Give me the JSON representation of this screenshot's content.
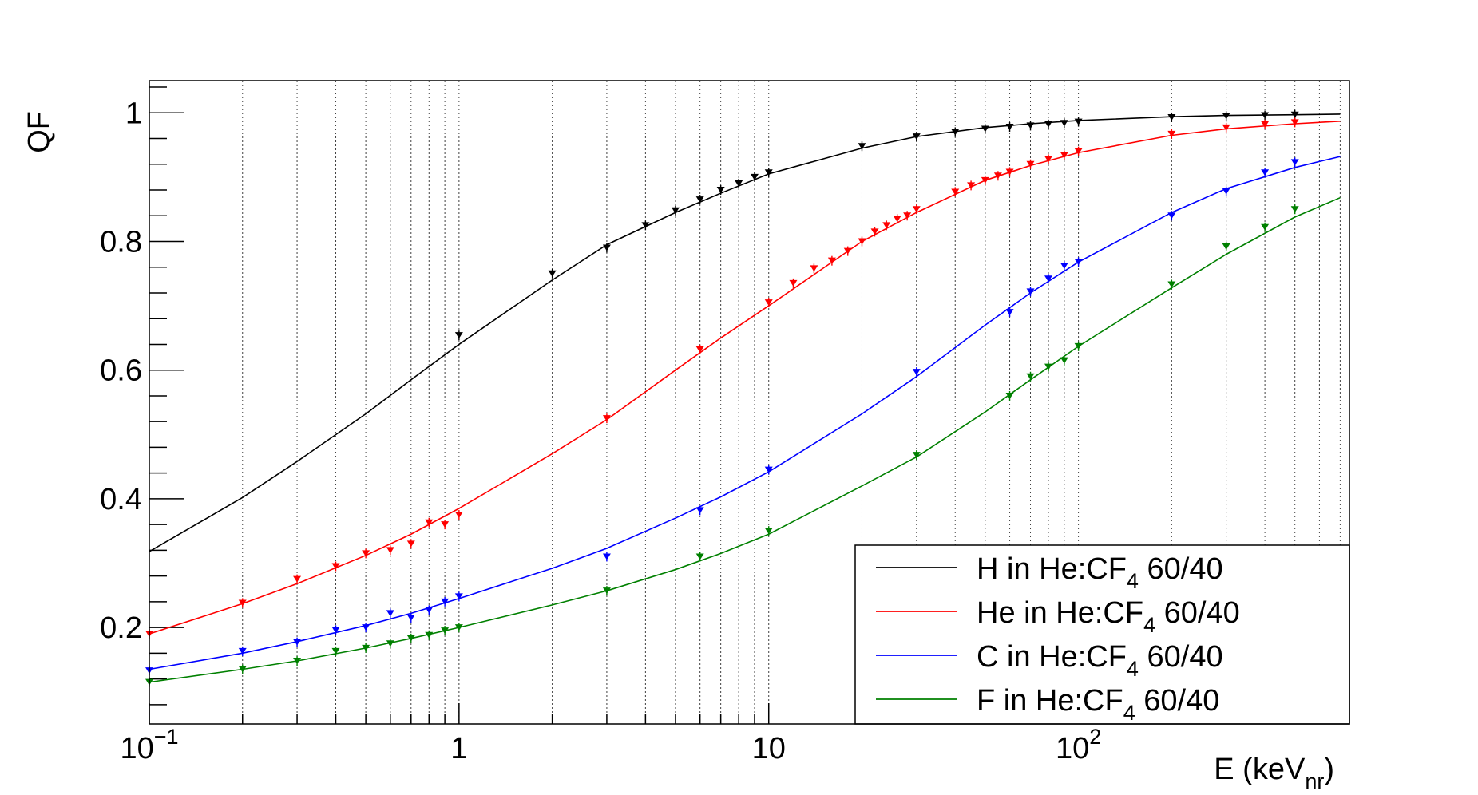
{
  "chart_data": {
    "type": "line",
    "xlabel": "E (keV",
    "xlabel_sub": "nr",
    "xlabel_end": ")",
    "ylabel": "QF",
    "xscale": "log",
    "xlim": [
      0.1,
      750
    ],
    "ylim": [
      0.05,
      1.05
    ],
    "grid": "vertical",
    "legend_position": "bottom-right",
    "x_tick_labels": [
      {
        "value": 0.1,
        "base": "10",
        "exp": "−1"
      },
      {
        "value": 1,
        "base": "1",
        "exp": ""
      },
      {
        "value": 10,
        "base": "10",
        "exp": ""
      },
      {
        "value": 100,
        "base": "10",
        "exp": "2"
      }
    ],
    "y_ticks": [
      0.2,
      0.4,
      0.6,
      0.8,
      1
    ],
    "y_tick_labels": [
      "0.2",
      "0.4",
      "0.6",
      "0.8",
      "1"
    ],
    "series": [
      {
        "name": "H in He:CF",
        "name_sub": "4",
        "name_end": " 60/40",
        "color": "#000000",
        "curve_x": [
          0.1,
          0.2,
          0.3,
          0.5,
          0.7,
          1,
          2,
          3,
          5,
          7,
          10,
          20,
          30,
          50,
          70,
          100,
          200,
          300,
          500,
          700
        ],
        "curve_y": [
          0.318,
          0.402,
          0.458,
          0.532,
          0.585,
          0.64,
          0.74,
          0.795,
          0.845,
          0.875,
          0.905,
          0.945,
          0.963,
          0.977,
          0.983,
          0.988,
          0.994,
          0.996,
          0.997,
          0.998
        ],
        "points": [
          [
            1,
            0.654
          ],
          [
            2,
            0.75
          ],
          [
            3,
            0.79
          ],
          [
            4,
            0.825
          ],
          [
            5,
            0.848
          ],
          [
            6,
            0.865
          ],
          [
            7,
            0.88
          ],
          [
            8,
            0.89
          ],
          [
            9,
            0.9
          ],
          [
            10,
            0.907
          ],
          [
            20,
            0.948
          ],
          [
            30,
            0.963
          ],
          [
            40,
            0.97
          ],
          [
            50,
            0.975
          ],
          [
            60,
            0.978
          ],
          [
            70,
            0.98
          ],
          [
            80,
            0.982
          ],
          [
            90,
            0.984
          ],
          [
            100,
            0.986
          ],
          [
            200,
            0.993
          ],
          [
            300,
            0.995
          ],
          [
            400,
            0.996
          ],
          [
            500,
            0.997
          ]
        ]
      },
      {
        "name": "He in He:CF",
        "name_sub": "4",
        "name_end": " 60/40",
        "color": "#ff0000",
        "curve_x": [
          0.1,
          0.2,
          0.3,
          0.5,
          0.7,
          1,
          2,
          3,
          5,
          7,
          10,
          20,
          30,
          50,
          70,
          100,
          200,
          300,
          500,
          700
        ],
        "curve_y": [
          0.19,
          0.237,
          0.268,
          0.312,
          0.345,
          0.385,
          0.47,
          0.523,
          0.6,
          0.65,
          0.7,
          0.8,
          0.845,
          0.895,
          0.918,
          0.938,
          0.965,
          0.975,
          0.983,
          0.987
        ],
        "points": [
          [
            0.1,
            0.19
          ],
          [
            0.2,
            0.238
          ],
          [
            0.3,
            0.275
          ],
          [
            0.4,
            0.295
          ],
          [
            0.5,
            0.315
          ],
          [
            0.6,
            0.32
          ],
          [
            0.7,
            0.33
          ],
          [
            0.8,
            0.363
          ],
          [
            0.9,
            0.36
          ],
          [
            1,
            0.375
          ],
          [
            3,
            0.525
          ],
          [
            6,
            0.632
          ],
          [
            10,
            0.705
          ],
          [
            12,
            0.735
          ],
          [
            14,
            0.758
          ],
          [
            16,
            0.77
          ],
          [
            18,
            0.785
          ],
          [
            20,
            0.8
          ],
          [
            22,
            0.815
          ],
          [
            24,
            0.825
          ],
          [
            26,
            0.835
          ],
          [
            28,
            0.84
          ],
          [
            30,
            0.85
          ],
          [
            40,
            0.877
          ],
          [
            45,
            0.887
          ],
          [
            50,
            0.895
          ],
          [
            55,
            0.902
          ],
          [
            60,
            0.908
          ],
          [
            70,
            0.92
          ],
          [
            80,
            0.928
          ],
          [
            90,
            0.934
          ],
          [
            100,
            0.94
          ],
          [
            200,
            0.967
          ],
          [
            300,
            0.977
          ],
          [
            400,
            0.982
          ],
          [
            500,
            0.985
          ]
        ]
      },
      {
        "name": "C in He:CF",
        "name_sub": "4",
        "name_end": " 60/40",
        "color": "#0000ff",
        "curve_x": [
          0.1,
          0.2,
          0.3,
          0.5,
          0.7,
          1,
          2,
          3,
          5,
          7,
          10,
          20,
          30,
          50,
          70,
          100,
          200,
          300,
          500,
          700
        ],
        "curve_y": [
          0.135,
          0.16,
          0.178,
          0.203,
          0.222,
          0.245,
          0.292,
          0.323,
          0.37,
          0.403,
          0.442,
          0.532,
          0.59,
          0.67,
          0.72,
          0.768,
          0.845,
          0.882,
          0.915,
          0.932
        ],
        "points": [
          [
            0.1,
            0.133
          ],
          [
            0.2,
            0.163
          ],
          [
            0.3,
            0.177
          ],
          [
            0.4,
            0.196
          ],
          [
            0.5,
            0.2
          ],
          [
            0.6,
            0.222
          ],
          [
            0.7,
            0.215
          ],
          [
            0.8,
            0.227
          ],
          [
            0.9,
            0.24
          ],
          [
            1,
            0.248
          ],
          [
            3,
            0.31
          ],
          [
            6,
            0.382
          ],
          [
            10,
            0.445
          ],
          [
            30,
            0.597
          ],
          [
            60,
            0.69
          ],
          [
            70,
            0.722
          ],
          [
            80,
            0.742
          ],
          [
            90,
            0.762
          ],
          [
            100,
            0.768
          ],
          [
            200,
            0.84
          ],
          [
            300,
            0.878
          ],
          [
            400,
            0.907
          ],
          [
            500,
            0.923
          ]
        ]
      },
      {
        "name": "F in He:CF",
        "name_sub": "4",
        "name_end": " 60/40",
        "color": "#008000",
        "curve_x": [
          0.1,
          0.2,
          0.3,
          0.5,
          0.7,
          1,
          2,
          3,
          5,
          7,
          10,
          20,
          30,
          50,
          70,
          100,
          200,
          300,
          500,
          700
        ],
        "curve_y": [
          0.115,
          0.135,
          0.148,
          0.168,
          0.183,
          0.2,
          0.235,
          0.257,
          0.29,
          0.315,
          0.345,
          0.42,
          0.465,
          0.535,
          0.585,
          0.637,
          0.728,
          0.78,
          0.838,
          0.868
        ],
        "points": [
          [
            0.1,
            0.115
          ],
          [
            0.2,
            0.135
          ],
          [
            0.3,
            0.148
          ],
          [
            0.4,
            0.163
          ],
          [
            0.5,
            0.168
          ],
          [
            0.6,
            0.175
          ],
          [
            0.7,
            0.183
          ],
          [
            0.8,
            0.188
          ],
          [
            0.9,
            0.195
          ],
          [
            1,
            0.2
          ],
          [
            3,
            0.257
          ],
          [
            6,
            0.31
          ],
          [
            10,
            0.35
          ],
          [
            30,
            0.468
          ],
          [
            60,
            0.56
          ],
          [
            70,
            0.59
          ],
          [
            80,
            0.605
          ],
          [
            90,
            0.615
          ],
          [
            100,
            0.637
          ],
          [
            200,
            0.733
          ],
          [
            300,
            0.792
          ],
          [
            400,
            0.822
          ],
          [
            500,
            0.85
          ]
        ]
      }
    ]
  }
}
